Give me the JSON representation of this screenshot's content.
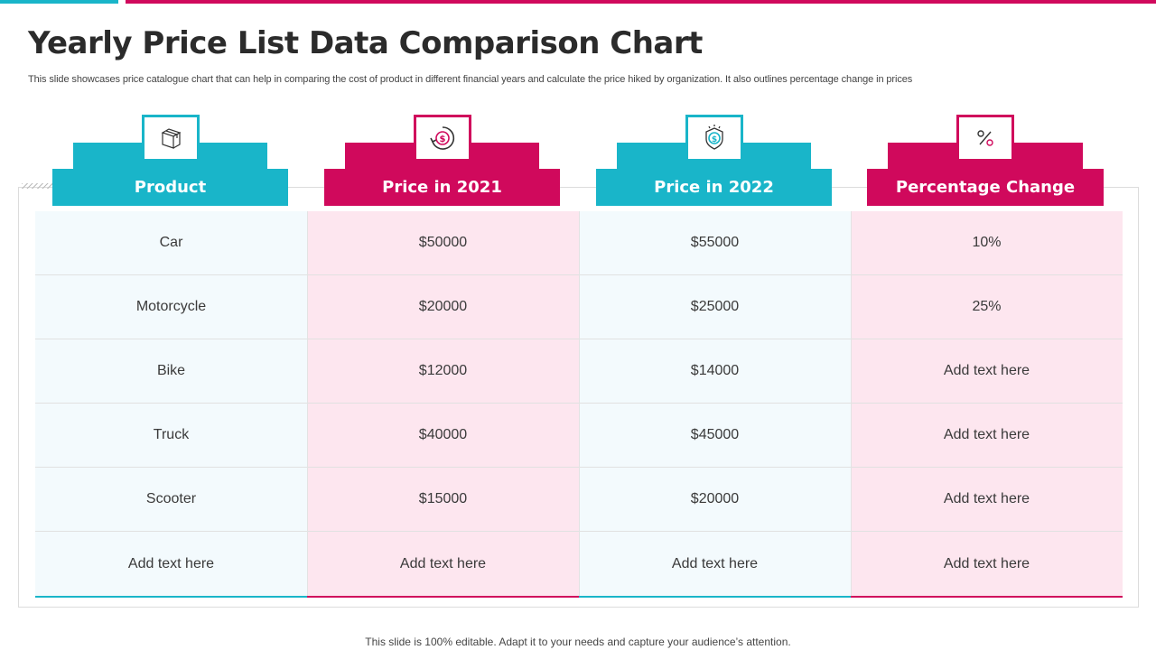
{
  "slide": {
    "title": "Yearly Price List Data Comparison Chart",
    "subtitle": "This slide showcases price catalogue chart that can help in comparing the cost of product in different financial years and calculate the price hiked by organization. It also outlines percentage change in prices",
    "footer": "This slide is 100% editable. Adapt it to your needs and capture your audience’s attention."
  },
  "colors": {
    "teal": "#19b5c9",
    "pink": "#d0095c",
    "teal_bg": "#f3fafd",
    "pink_bg": "#fde6ef"
  },
  "table": {
    "columns": [
      {
        "label": "Product",
        "icon": "box-icon",
        "color": "teal"
      },
      {
        "label": "Price in 2021",
        "icon": "dollar-cycle-icon",
        "color": "pink"
      },
      {
        "label": "Price in 2022",
        "icon": "dollar-shield-icon",
        "color": "teal"
      },
      {
        "label": "Percentage Change",
        "icon": "percent-icon",
        "color": "pink"
      }
    ],
    "rows": [
      [
        "Car",
        "$50000",
        "$55000",
        "10%"
      ],
      [
        "Motorcycle",
        "$20000",
        "$25000",
        "25%"
      ],
      [
        "Bike",
        "$12000",
        "$14000",
        "Add text here"
      ],
      [
        "Truck",
        "$40000",
        "$45000",
        "Add text here"
      ],
      [
        "Scooter",
        "$15000",
        "$20000",
        "Add text here"
      ],
      [
        "Add text here",
        "Add text here",
        "Add text here",
        "Add text here"
      ]
    ]
  }
}
